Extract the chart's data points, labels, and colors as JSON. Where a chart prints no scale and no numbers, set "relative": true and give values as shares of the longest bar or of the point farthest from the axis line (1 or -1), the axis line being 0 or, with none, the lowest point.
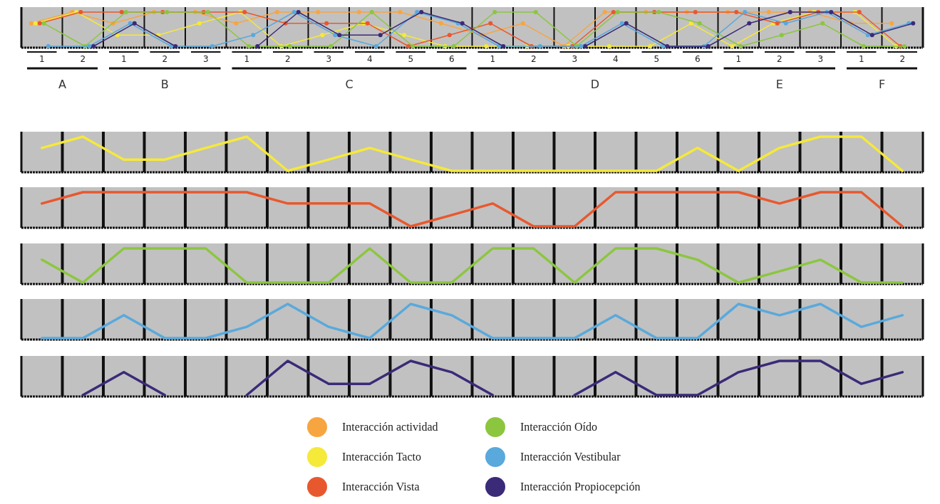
{
  "chart_data": [
    {
      "type": "line",
      "relative": true,
      "categories": [
        "1",
        "2",
        "1",
        "2",
        "3",
        "1",
        "2",
        "3",
        "4",
        "5",
        "6",
        "1",
        "2",
        "3",
        "4",
        "5",
        "6",
        "1",
        "2",
        "3",
        "1",
        "2"
      ],
      "annotations": [
        "A",
        "B",
        "C",
        "D",
        "E",
        "F"
      ],
      "marker": "circle",
      "legend": "bottom",
      "series": [
        {
          "name": "Interacción actividad",
          "color": "#f7a541",
          "values": [
            0.67,
            1,
            0.67,
            1,
            1,
            0.67,
            1,
            1,
            1,
            1,
            0.67,
            0.33,
            0.67,
            0,
            1,
            1,
            1,
            1,
            1,
            1,
            0.67,
            0.67
          ]
        },
        {
          "name": "Interacción Tacto",
          "color": "#f5e93a",
          "values": [
            0.67,
            1,
            0.33,
            0.33,
            0.67,
            1,
            0,
            0.33,
            0.67,
            0.33,
            0,
            0,
            0,
            0,
            0,
            0,
            0.67,
            0,
            0.67,
            1,
            1,
            0
          ]
        },
        {
          "name": "Interacción Vista",
          "color": "#e8582e",
          "values": [
            0.67,
            1,
            1,
            1,
            1,
            1,
            0.67,
            0.67,
            0.67,
            0,
            0.33,
            0.67,
            0,
            0,
            1,
            1,
            1,
            1,
            0.67,
            1,
            1,
            0
          ]
        },
        {
          "name": "Interacción Oído",
          "color": "#8cc63f",
          "values": [
            0.67,
            0,
            1,
            1,
            1,
            0,
            0,
            0,
            1,
            0,
            0,
            1,
            1,
            0,
            1,
            1,
            0.67,
            0,
            0.33,
            0.67,
            0,
            0
          ]
        },
        {
          "name": "Interacción Vestibular",
          "color": "#59a9dc",
          "values": [
            0,
            0,
            0.67,
            0,
            0,
            0.33,
            1,
            0.33,
            0,
            1,
            0.67,
            0,
            0,
            0,
            0.67,
            0,
            0,
            1,
            0.67,
            1,
            0.33,
            0.67
          ]
        },
        {
          "name": "Interacción Propiocepción",
          "color": "#3b2a78",
          "values": [
            null,
            0,
            0.67,
            0,
            null,
            0,
            1,
            0.33,
            0.33,
            1,
            0.67,
            0,
            null,
            0,
            0.67,
            0,
            0,
            0.67,
            1,
            1,
            0.33,
            0.67
          ]
        }
      ]
    },
    {
      "type": "line",
      "relative": true,
      "categories": [
        null,
        null,
        null,
        null,
        null,
        null,
        null,
        null,
        null,
        null,
        null,
        null,
        null,
        null,
        null,
        null,
        null,
        null,
        null,
        null,
        null,
        null
      ],
      "series": [
        {
          "color": "#f5e93a",
          "values": [
            0.67,
            1,
            0.33,
            0.33,
            0.67,
            1,
            0,
            0.33,
            0.67,
            0.33,
            0,
            0,
            0,
            0,
            0,
            0,
            0.67,
            0,
            0.67,
            1,
            1,
            0
          ]
        }
      ]
    },
    {
      "type": "line",
      "relative": true,
      "categories": [
        null,
        null,
        null,
        null,
        null,
        null,
        null,
        null,
        null,
        null,
        null,
        null,
        null,
        null,
        null,
        null,
        null,
        null,
        null,
        null,
        null,
        null
      ],
      "series": [
        {
          "color": "#e8582e",
          "values": [
            0.67,
            1,
            1,
            1,
            1,
            1,
            0.67,
            0.67,
            0.67,
            0,
            0.33,
            0.67,
            0,
            0,
            1,
            1,
            1,
            1,
            0.67,
            1,
            1,
            0
          ]
        }
      ]
    },
    {
      "type": "line",
      "relative": true,
      "categories": [
        null,
        null,
        null,
        null,
        null,
        null,
        null,
        null,
        null,
        null,
        null,
        null,
        null,
        null,
        null,
        null,
        null,
        null,
        null,
        null,
        null,
        null
      ],
      "series": [
        {
          "color": "#8cc63f",
          "values": [
            0.67,
            0,
            1,
            1,
            1,
            0,
            0,
            0,
            1,
            0,
            0,
            1,
            1,
            0,
            1,
            1,
            0.67,
            0,
            0.33,
            0.67,
            0,
            0
          ]
        }
      ]
    },
    {
      "type": "line",
      "relative": true,
      "categories": [
        null,
        null,
        null,
        null,
        null,
        null,
        null,
        null,
        null,
        null,
        null,
        null,
        null,
        null,
        null,
        null,
        null,
        null,
        null,
        null,
        null,
        null
      ],
      "series": [
        {
          "color": "#59a9dc",
          "values": [
            0,
            0,
            0.67,
            0,
            0,
            0.33,
            1,
            0.33,
            0,
            1,
            0.67,
            0,
            0,
            0,
            0.67,
            0,
            0,
            1,
            0.67,
            1,
            0.33,
            0.67
          ]
        }
      ]
    },
    {
      "type": "line",
      "relative": true,
      "categories": [
        null,
        null,
        null,
        null,
        null,
        null,
        null,
        null,
        null,
        null,
        null,
        null,
        null,
        null,
        null,
        null,
        null,
        null,
        null,
        null,
        null,
        null
      ],
      "series": [
        {
          "color": "#3b2a78",
          "values": [
            null,
            0,
            0.67,
            0,
            null,
            0,
            1,
            0.33,
            0.33,
            1,
            0.67,
            0,
            null,
            0,
            0.67,
            0,
            0,
            0.67,
            1,
            1,
            0.33,
            0.67
          ]
        }
      ]
    }
  ]
}
